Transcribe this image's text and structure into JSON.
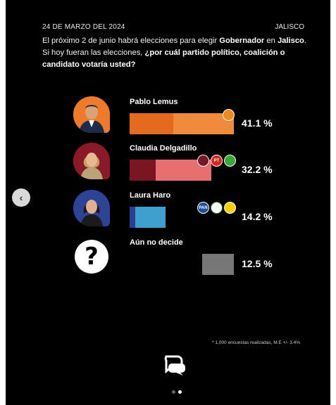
{
  "header": {
    "date": "24 DE MARZO DEL 2024",
    "region": "JALISCO"
  },
  "question": {
    "part1": "El próximo 2 de junio habrá elecciones para elegir ",
    "part2": "Gobernador",
    "part3": " en ",
    "part4": "Jalisco",
    "part5": ". Si hoy fueran las elecciones, ",
    "part6": "¿por cuál partido político, coalición o candidato votaría usted?"
  },
  "chart_data": {
    "type": "bar",
    "categories": [
      "Pablo Lemus",
      "Claudia Delgadillo",
      "Laura Haro",
      "Aún no decide"
    ],
    "values": [
      41.1,
      32.2,
      14.2,
      12.5
    ],
    "value_labels": [
      "41.1 %",
      "32.2 %",
      "14.2 %",
      "12.5 %"
    ],
    "colors": {
      "Pablo Lemus": [
        "#e46a1f",
        "#f08a3c"
      ],
      "Claudia Delgadillo": [
        "#7a1622",
        "#e86f6f"
      ],
      "Laura Haro": [
        "#2a3f8f",
        "#3f9fce"
      ],
      "Aún no decide": [
        "#777777",
        "#777777"
      ]
    },
    "party_logos": {
      "Pablo Lemus": [
        "MC"
      ],
      "Claudia Delgadillo": [
        "MORENA",
        "PT",
        "VERDE"
      ],
      "Laura Haro": [
        "PAN",
        "PRI",
        "PRD"
      ],
      "Aún no decide": []
    }
  },
  "logos": {
    "mc": "",
    "morena": "",
    "pt": "PT",
    "verde": "",
    "pan": "PAN",
    "pri": "",
    "prd": ""
  },
  "unknown_symbol": "?",
  "nav": {
    "prev": "‹"
  },
  "footnote": "* 1,000 encuestas realizadas, M.E +/- 3.4%",
  "pagination": {
    "total": 2,
    "current": 2
  }
}
